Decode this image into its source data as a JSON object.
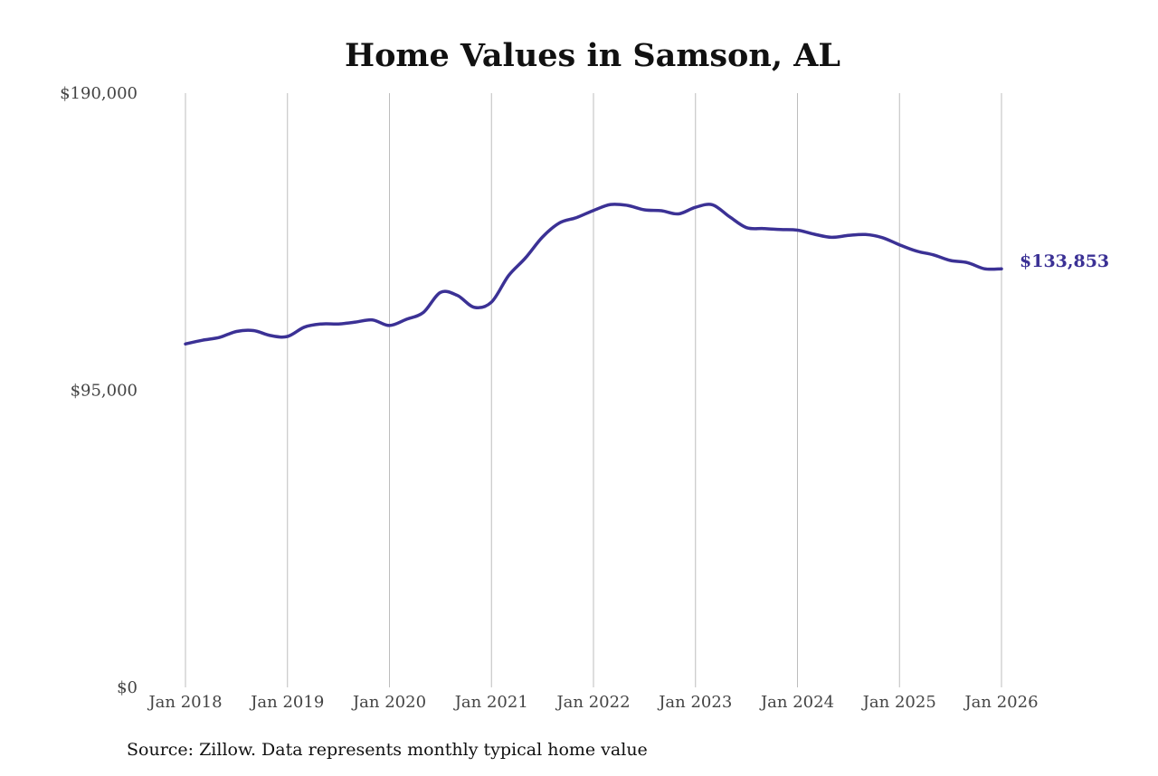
{
  "chart_data": {
    "type": "line",
    "title": "Home Values in Samson, AL",
    "source": "Source: Zillow. Data represents monthly typical home value",
    "line_color": "#3b3195",
    "grid_color": "#bdbdbd",
    "grid": "vertical",
    "x_tick_labels": [
      "Jan 2018",
      "Jan 2019",
      "Jan 2020",
      "Jan 2021",
      "Jan 2022",
      "Jan 2023",
      "Jan 2024",
      "Jan 2025",
      "Jan 2026"
    ],
    "y_tick_labels": [
      "$190,000",
      "$95,000",
      "$0"
    ],
    "y_ticks": [
      190000,
      95000,
      0
    ],
    "ylim": [
      0,
      190000
    ],
    "xlim": [
      "2018-01",
      "2026-01"
    ],
    "end_label": "$133,853",
    "series": [
      {
        "x": [
          "2018-01",
          "2018-03",
          "2018-05",
          "2018-07",
          "2018-09",
          "2018-11",
          "2019-01",
          "2019-03",
          "2019-05",
          "2019-07",
          "2019-09",
          "2019-11",
          "2020-01",
          "2020-03",
          "2020-05",
          "2020-07",
          "2020-09",
          "2020-11",
          "2021-01",
          "2021-03",
          "2021-05",
          "2021-07",
          "2021-09",
          "2021-11",
          "2022-01",
          "2022-03",
          "2022-05",
          "2022-07",
          "2022-09",
          "2022-11",
          "2023-01",
          "2023-03",
          "2023-05",
          "2023-07",
          "2023-09",
          "2023-11",
          "2024-01",
          "2024-03",
          "2024-05",
          "2024-07",
          "2024-09",
          "2024-11",
          "2025-01",
          "2025-03",
          "2025-05",
          "2025-07",
          "2025-09",
          "2025-11",
          "2026-01"
        ],
        "values": [
          109800,
          111000,
          111900,
          113800,
          114100,
          112500,
          112200,
          115200,
          116200,
          116200,
          116800,
          117500,
          115700,
          117700,
          119900,
          126300,
          125300,
          121500,
          123200,
          131600,
          137300,
          144000,
          148500,
          150200,
          152500,
          154400,
          154100,
          152700,
          152400,
          151400,
          153500,
          154300,
          150500,
          147000,
          146700,
          146400,
          146200,
          144900,
          143900,
          144500,
          144800,
          143800,
          141500,
          139500,
          138300,
          136500,
          135800,
          133853,
          133853
        ]
      }
    ]
  }
}
